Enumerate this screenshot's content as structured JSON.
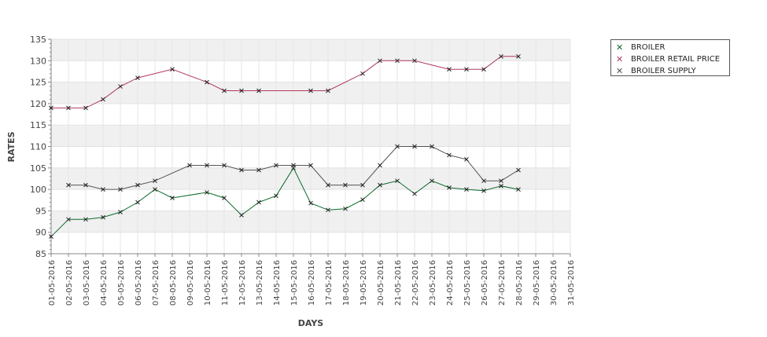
{
  "chart_data": {
    "type": "line",
    "title": "",
    "xlabel": "DAYS",
    "ylabel": "RATES",
    "ylim": [
      85,
      135
    ],
    "yticks": [
      85,
      90,
      95,
      100,
      105,
      110,
      115,
      120,
      125,
      130,
      135
    ],
    "grid": "alternating horizontal bands",
    "legend_position": "top-right",
    "categories": [
      "01-05-2016",
      "02-05-2016",
      "03-05-2016",
      "04-05-2016",
      "05-05-2016",
      "06-05-2016",
      "07-05-2016",
      "08-05-2016",
      "09-05-2016",
      "10-05-2016",
      "11-05-2016",
      "12-05-2016",
      "13-05-2016",
      "14-05-2016",
      "15-05-2016",
      "16-05-2016",
      "17-05-2016",
      "18-05-2016",
      "19-05-2016",
      "20-05-2016",
      "21-05-2016",
      "22-05-2016",
      "23-05-2016",
      "24-05-2016",
      "25-05-2016",
      "26-05-2016",
      "27-05-2016",
      "28-05-2016",
      "29-05-2016",
      "30-05-2016",
      "31-05-2016"
    ],
    "series": [
      {
        "name": "BROILER",
        "color": "#0a6a2a",
        "values": [
          89,
          93,
          93,
          93.5,
          94.7,
          97,
          100,
          98,
          null,
          99.3,
          98,
          94,
          97,
          98.5,
          105,
          96.8,
          95.2,
          95.5,
          97.6,
          101,
          102,
          99,
          102,
          100.4,
          100,
          99.7,
          100.8,
          100,
          null,
          null,
          null
        ]
      },
      {
        "name": "BROILER RETAIL PRICE",
        "color": "#b03a5a",
        "values": [
          119,
          119,
          119,
          121,
          124,
          126,
          null,
          128,
          null,
          125,
          123,
          123,
          123,
          null,
          null,
          123,
          123,
          null,
          127,
          130,
          130,
          130,
          null,
          128,
          128,
          128,
          131,
          131,
          null,
          null,
          null
        ]
      },
      {
        "name": "BROILER SUPPLY",
        "color": "#555555",
        "values": [
          null,
          101,
          101,
          100,
          100,
          101,
          102,
          null,
          105.6,
          105.6,
          105.6,
          104.5,
          104.5,
          105.6,
          105.6,
          105.6,
          101,
          101,
          101,
          105.6,
          110,
          110,
          110,
          108,
          107,
          102,
          102,
          104.5,
          null,
          null,
          null
        ]
      }
    ]
  }
}
